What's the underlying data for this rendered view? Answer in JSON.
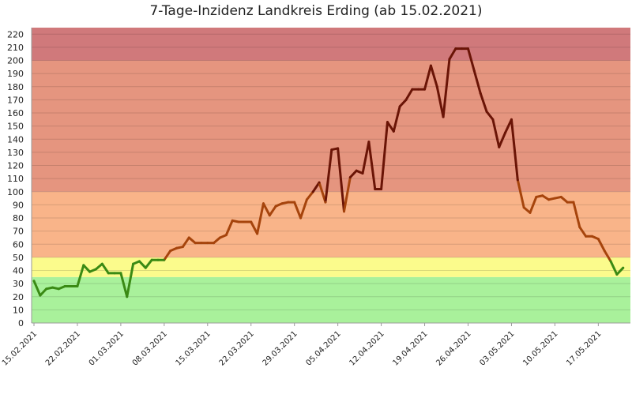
{
  "chart_data": {
    "type": "line",
    "title": "7-Tage-Inzidenz Landkreis Erding (ab 15.02.2021)",
    "xlabel": "",
    "ylabel": "",
    "ylim": [
      0,
      225
    ],
    "y_ticks": [
      0,
      10,
      20,
      30,
      40,
      50,
      60,
      70,
      80,
      90,
      100,
      110,
      120,
      130,
      140,
      150,
      160,
      170,
      180,
      190,
      200,
      210,
      220
    ],
    "x_tick_labels": [
      "15.02.2021",
      "22.02.2021",
      "01.03.2021",
      "08.03.2021",
      "15.03.2021",
      "22.03.2021",
      "29.03.2021",
      "05.04.2021",
      "12.04.2021",
      "19.04.2021",
      "26.04.2021",
      "03.05.2021",
      "10.05.2021",
      "17.05.2021"
    ],
    "grid": true,
    "bands": [
      {
        "from": 0,
        "to": 35,
        "color": "#a9f19b"
      },
      {
        "from": 35,
        "to": 50,
        "color": "#fbfb8c"
      },
      {
        "from": 50,
        "to": 100,
        "color": "#f9b489"
      },
      {
        "from": 100,
        "to": 200,
        "color": "#e5957f"
      },
      {
        "from": 200,
        "to": 225,
        "color": "#d0797b"
      }
    ],
    "line_colors": {
      "low": "#3a8a14",
      "mid": "#a6440c",
      "high": "#6a1406"
    },
    "series": [
      {
        "dates": [
          "15.02.2021",
          "16.02.2021",
          "17.02.2021",
          "18.02.2021",
          "19.02.2021",
          "20.02.2021",
          "21.02.2021",
          "22.02.2021",
          "23.02.2021",
          "24.02.2021",
          "25.02.2021",
          "26.02.2021",
          "27.02.2021",
          "28.02.2021",
          "01.03.2021",
          "02.03.2021",
          "03.03.2021",
          "04.03.2021",
          "05.03.2021",
          "06.03.2021",
          "07.03.2021",
          "08.03.2021",
          "09.03.2021",
          "10.03.2021",
          "11.03.2021",
          "12.03.2021",
          "13.03.2021",
          "14.03.2021",
          "15.03.2021",
          "16.03.2021",
          "17.03.2021",
          "18.03.2021",
          "19.03.2021",
          "20.03.2021",
          "21.03.2021",
          "22.03.2021",
          "23.03.2021",
          "24.03.2021",
          "25.03.2021",
          "26.03.2021",
          "27.03.2021",
          "28.03.2021",
          "29.03.2021",
          "30.03.2021",
          "31.03.2021",
          "01.04.2021",
          "02.04.2021",
          "03.04.2021",
          "04.04.2021",
          "05.04.2021",
          "06.04.2021",
          "07.04.2021",
          "08.04.2021",
          "09.04.2021",
          "10.04.2021",
          "11.04.2021",
          "12.04.2021",
          "13.04.2021",
          "14.04.2021",
          "15.04.2021",
          "16.04.2021",
          "17.04.2021",
          "18.04.2021",
          "19.04.2021",
          "20.04.2021",
          "21.04.2021",
          "22.04.2021",
          "23.04.2021",
          "24.04.2021",
          "25.04.2021",
          "26.04.2021",
          "27.04.2021",
          "28.04.2021",
          "29.04.2021",
          "30.04.2021",
          "01.05.2021",
          "02.05.2021",
          "03.05.2021",
          "04.05.2021",
          "05.05.2021",
          "06.05.2021",
          "07.05.2021",
          "08.05.2021",
          "09.05.2021",
          "10.05.2021",
          "11.05.2021",
          "12.05.2021",
          "13.05.2021",
          "14.05.2021",
          "15.05.2021",
          "16.05.2021",
          "17.05.2021",
          "18.05.2021",
          "19.05.2021",
          "20.05.2021",
          "21.05.2021"
        ],
        "values": [
          32,
          21,
          26,
          27,
          26,
          28,
          28,
          28,
          44,
          39,
          41,
          45,
          38,
          38,
          38,
          20,
          45,
          47,
          42,
          48,
          48,
          48,
          55,
          57,
          58,
          65,
          61,
          61,
          61,
          61,
          65,
          67,
          78,
          77,
          77,
          77,
          68,
          91,
          82,
          89,
          91,
          92,
          92,
          80,
          94,
          100,
          107,
          92,
          132,
          133,
          85,
          111,
          116,
          114,
          138,
          102,
          102,
          153,
          146,
          165,
          170,
          178,
          178,
          178,
          196,
          180,
          157,
          201,
          209,
          209,
          209,
          192,
          175,
          161,
          155,
          134,
          145,
          155,
          109,
          88,
          84,
          96,
          97,
          94,
          95,
          96,
          92,
          92,
          73,
          66,
          66,
          64,
          55,
          47,
          37,
          42
        ]
      }
    ]
  }
}
